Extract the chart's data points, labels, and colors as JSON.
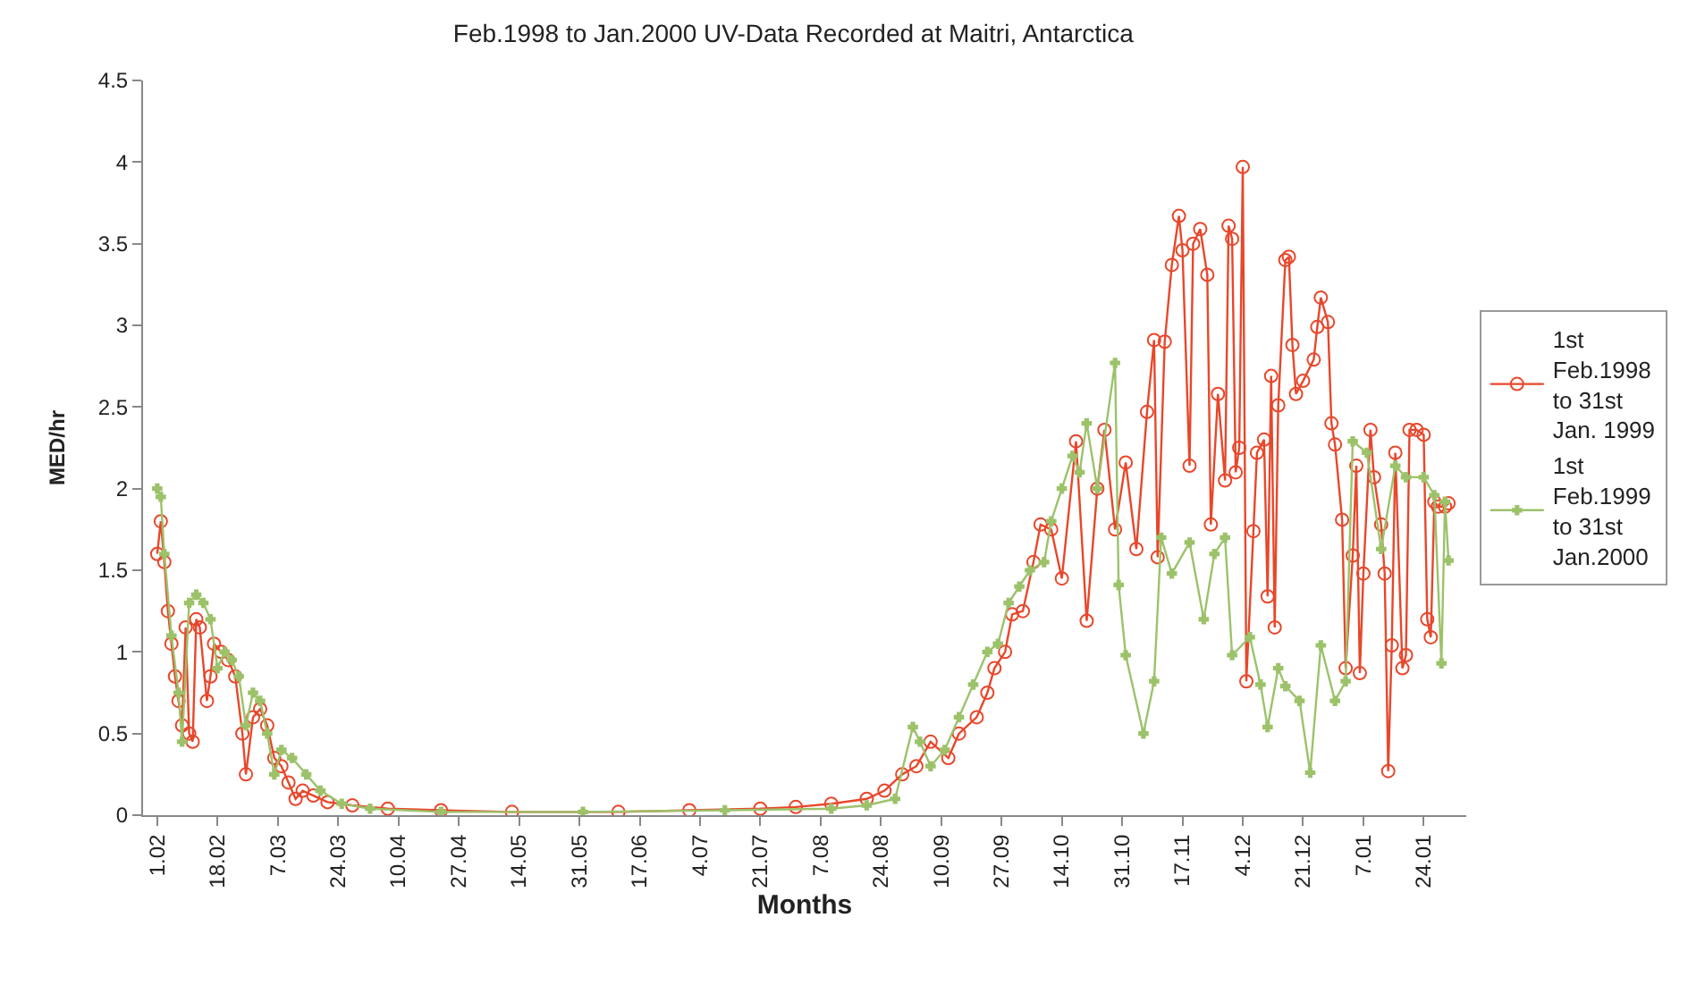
{
  "chart_data": {
    "type": "line",
    "title": "Feb.1998 to Jan.2000 UV-Data Recorded at Maitri, Antarctica",
    "xlabel": "Months",
    "ylabel": "MED/hr",
    "xlim": [
      "1998-01-28",
      "1999-02-05"
    ],
    "xticks": [
      {
        "value": "1998-02-01",
        "label": "1.02"
      },
      {
        "value": "1998-02-18",
        "label": "18.02"
      },
      {
        "value": "1998-03-07",
        "label": "7.03"
      },
      {
        "value": "1998-03-24",
        "label": "24.03"
      },
      {
        "value": "1998-04-10",
        "label": "10.04"
      },
      {
        "value": "1998-04-27",
        "label": "27.04"
      },
      {
        "value": "1998-05-14",
        "label": "14.05"
      },
      {
        "value": "1998-05-31",
        "label": "31.05"
      },
      {
        "value": "1998-06-17",
        "label": "17.06"
      },
      {
        "value": "1998-07-04",
        "label": "4.07"
      },
      {
        "value": "1998-07-21",
        "label": "21.07"
      },
      {
        "value": "1998-08-07",
        "label": "7.08"
      },
      {
        "value": "1998-08-24",
        "label": "24.08"
      },
      {
        "value": "1998-09-10",
        "label": "10.09"
      },
      {
        "value": "1998-09-27",
        "label": "27.09"
      },
      {
        "value": "1998-10-14",
        "label": "14.10"
      },
      {
        "value": "1998-10-31",
        "label": "31.10"
      },
      {
        "value": "1998-11-17",
        "label": "17.11"
      },
      {
        "value": "1998-12-04",
        "label": "4.12"
      },
      {
        "value": "1998-12-21",
        "label": "21.12"
      },
      {
        "value": "1999-01-07",
        "label": "7.01"
      },
      {
        "value": "1999-01-24",
        "label": "24.01"
      }
    ],
    "ylim": [
      0,
      4.5
    ],
    "yticks": [
      0,
      0.5,
      1,
      1.5,
      2,
      2.5,
      3,
      3.5,
      4,
      4.5
    ],
    "legend": "right",
    "series": [
      {
        "name": "1st Feb.1998 to 31st Jan. 1999",
        "color": "#e8472b",
        "marker": "circle",
        "x": [
          "1998-02-01",
          "1998-02-02",
          "1998-02-03",
          "1998-02-04",
          "1998-02-05",
          "1998-02-06",
          "1998-02-07",
          "1998-02-08",
          "1998-02-09",
          "1998-02-10",
          "1998-02-11",
          "1998-02-12",
          "1998-02-13",
          "1998-02-15",
          "1998-02-16",
          "1998-02-17",
          "1998-02-19",
          "1998-02-21",
          "1998-02-23",
          "1998-02-25",
          "1998-02-26",
          "1998-02-28",
          "1998-03-02",
          "1998-03-04",
          "1998-03-06",
          "1998-03-08",
          "1998-03-10",
          "1998-03-12",
          "1998-03-14",
          "1998-03-17",
          "1998-03-21",
          "1998-03-28",
          "1998-04-07",
          "1998-04-22",
          "1998-05-12",
          "1998-06-11",
          "1998-07-01",
          "1998-07-21",
          "1998-07-31",
          "1998-08-10",
          "1998-08-20",
          "1998-08-25",
          "1998-08-30",
          "1998-09-03",
          "1998-09-07",
          "1998-09-12",
          "1998-09-15",
          "1998-09-20",
          "1998-09-23",
          "1998-09-25",
          "1998-09-28",
          "1998-09-30",
          "1998-10-03",
          "1998-10-06",
          "1998-10-08",
          "1998-10-11",
          "1998-10-14",
          "1998-10-18",
          "1998-10-21",
          "1998-10-24",
          "1998-10-26",
          "1998-10-29",
          "1998-11-01",
          "1998-11-04",
          "1998-11-07",
          "1998-11-09",
          "1998-11-10",
          "1998-11-12",
          "1998-11-14",
          "1998-11-16",
          "1998-11-17",
          "1998-11-19",
          "1998-11-20",
          "1998-11-22",
          "1998-11-24",
          "1998-11-25",
          "1998-11-27",
          "1998-11-29",
          "1998-11-30",
          "1998-12-01",
          "1998-12-02",
          "1998-12-03",
          "1998-12-04",
          "1998-12-05",
          "1998-12-07",
          "1998-12-08",
          "1998-12-10",
          "1998-12-11",
          "1998-12-12",
          "1998-12-13",
          "1998-12-14",
          "1998-12-16",
          "1998-12-17",
          "1998-12-18",
          "1998-12-19",
          "1998-12-21",
          "1998-12-24",
          "1998-12-25",
          "1998-12-26",
          "1998-12-28",
          "1998-12-29",
          "1998-12-30",
          "1999-01-01",
          "1999-01-02",
          "1999-01-04",
          "1999-01-05",
          "1999-01-06",
          "1999-01-07",
          "1999-01-09",
          "1999-01-10",
          "1999-01-12",
          "1999-01-13",
          "1999-01-14",
          "1999-01-15",
          "1999-01-16",
          "1999-01-18",
          "1999-01-19",
          "1999-01-20",
          "1999-01-22",
          "1999-01-24",
          "1999-01-25",
          "1999-01-26",
          "1999-01-27",
          "1999-01-28",
          "1999-01-30",
          "1999-01-31"
        ],
        "values": [
          1.6,
          1.8,
          1.55,
          1.25,
          1.05,
          0.85,
          0.7,
          0.55,
          1.15,
          0.5,
          0.45,
          1.2,
          1.15,
          0.7,
          0.85,
          1.05,
          1.0,
          0.95,
          0.85,
          0.5,
          0.25,
          0.6,
          0.65,
          0.55,
          0.35,
          0.3,
          0.2,
          0.1,
          0.15,
          0.12,
          0.08,
          0.06,
          0.04,
          0.03,
          0.02,
          0.02,
          0.03,
          0.04,
          0.05,
          0.07,
          0.1,
          0.15,
          0.25,
          0.3,
          0.45,
          0.35,
          0.5,
          0.6,
          0.75,
          0.9,
          1.0,
          1.23,
          1.25,
          1.55,
          1.78,
          1.75,
          1.45,
          2.29,
          1.19,
          2.0,
          2.36,
          1.75,
          2.16,
          1.63,
          2.47,
          2.91,
          1.58,
          2.9,
          3.37,
          3.67,
          3.46,
          2.14,
          3.5,
          3.59,
          3.31,
          1.78,
          2.58,
          2.05,
          3.61,
          3.53,
          2.1,
          2.25,
          3.97,
          0.82,
          1.74,
          2.22,
          2.3,
          1.34,
          2.69,
          1.15,
          2.51,
          3.4,
          3.42,
          2.88,
          2.58,
          2.66,
          2.79,
          2.99,
          3.17,
          3.02,
          2.4,
          2.27,
          1.81,
          0.9,
          1.59,
          2.14,
          0.87,
          1.48,
          2.36,
          2.07,
          1.78,
          1.48,
          0.27,
          1.04,
          2.22,
          0.9,
          0.98,
          2.36,
          2.36,
          2.33,
          1.2,
          1.09,
          1.92,
          1.89,
          1.89,
          1.91
        ]
      },
      {
        "name": "1st Feb.1999 to 31st Jan.2000",
        "color": "#9cc26a",
        "marker": "cross",
        "x": [
          "1998-02-01",
          "1998-02-02",
          "1998-02-03",
          "1998-02-05",
          "1998-02-07",
          "1998-02-08",
          "1998-02-10",
          "1998-02-12",
          "1998-02-14",
          "1998-02-16",
          "1998-02-18",
          "1998-02-20",
          "1998-02-22",
          "1998-02-24",
          "1998-02-26",
          "1998-02-28",
          "1998-03-02",
          "1998-03-04",
          "1998-03-06",
          "1998-03-08",
          "1998-03-11",
          "1998-03-15",
          "1998-03-19",
          "1998-03-25",
          "1998-04-02",
          "1998-04-22",
          "1998-06-01",
          "1998-07-11",
          "1998-08-10",
          "1998-08-20",
          "1998-08-28",
          "1998-09-02",
          "1998-09-04",
          "1998-09-07",
          "1998-09-11",
          "1998-09-15",
          "1998-09-19",
          "1998-09-23",
          "1998-09-26",
          "1998-09-29",
          "1998-10-02",
          "1998-10-05",
          "1998-10-09",
          "1998-10-11",
          "1998-10-14",
          "1998-10-17",
          "1998-10-19",
          "1998-10-21",
          "1998-10-24",
          "1998-10-29",
          "1998-10-30",
          "1998-11-01",
          "1998-11-06",
          "1998-11-09",
          "1998-11-11",
          "1998-11-14",
          "1998-11-19",
          "1998-11-23",
          "1998-11-26",
          "1998-11-29",
          "1998-12-01",
          "1998-12-06",
          "1998-12-09",
          "1998-12-11",
          "1998-12-14",
          "1998-12-16",
          "1998-12-20",
          "1998-12-23",
          "1998-12-26",
          "1998-12-30",
          "1999-01-02",
          "1999-01-04",
          "1999-01-08",
          "1999-01-12",
          "1999-01-16",
          "1999-01-19",
          "1999-01-24",
          "1999-01-27",
          "1999-01-29",
          "1999-01-30",
          "1999-01-31"
        ],
        "values": [
          2.0,
          1.95,
          1.6,
          1.1,
          0.75,
          0.45,
          1.3,
          1.35,
          1.3,
          1.2,
          0.9,
          1.0,
          0.95,
          0.85,
          0.55,
          0.75,
          0.7,
          0.5,
          0.25,
          0.4,
          0.35,
          0.25,
          0.15,
          0.07,
          0.04,
          0.02,
          0.02,
          0.03,
          0.04,
          0.06,
          0.1,
          0.54,
          0.45,
          0.3,
          0.4,
          0.6,
          0.8,
          1.0,
          1.05,
          1.3,
          1.4,
          1.5,
          1.55,
          1.8,
          2.0,
          2.2,
          2.1,
          2.4,
          2.0,
          2.77,
          1.41,
          0.98,
          0.5,
          0.82,
          1.7,
          1.48,
          1.67,
          1.2,
          1.6,
          1.7,
          0.98,
          1.09,
          0.8,
          0.54,
          0.9,
          0.79,
          0.7,
          0.26,
          1.04,
          0.7,
          0.82,
          2.29,
          2.22,
          1.63,
          2.14,
          2.07,
          2.07,
          1.96,
          0.93,
          1.92,
          1.56
        ]
      }
    ]
  }
}
